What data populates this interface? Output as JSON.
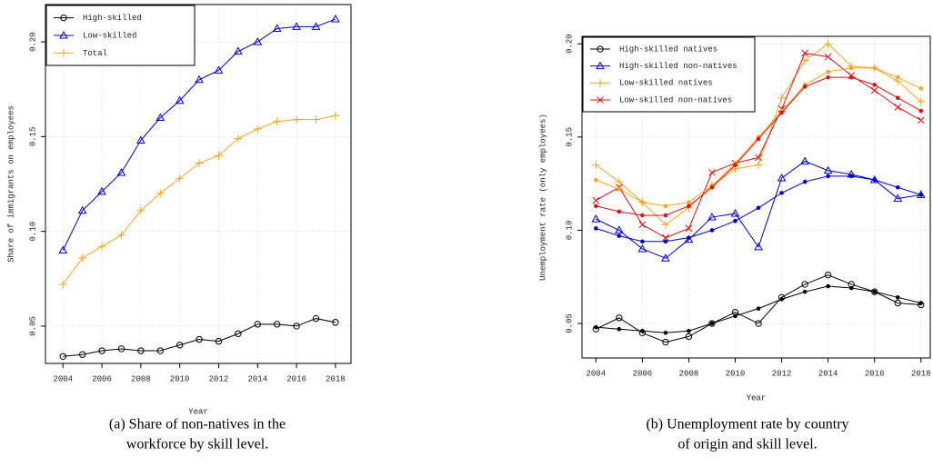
{
  "chart_data": [
    {
      "type": "line",
      "ylabel": "Share of immigrants on employees",
      "xlabel": "Year",
      "caption": [
        "(a) Share of non-natives in the",
        "workforce by skill level."
      ],
      "legend": "top-left",
      "grid": true,
      "x": [
        2004,
        2005,
        2006,
        2007,
        2008,
        2009,
        2010,
        2011,
        2012,
        2013,
        2014,
        2015,
        2016,
        2017,
        2018
      ],
      "xlim": [
        2003.1,
        2018.8
      ],
      "xticks": [
        2004,
        2006,
        2008,
        2010,
        2012,
        2014,
        2016,
        2018
      ],
      "ylim": [
        0.0303,
        0.2197
      ],
      "yticks": [
        0.05,
        {
          "value": 0.1,
          "label": "0.10"
        },
        0.15,
        {
          "value": 0.2,
          "label": "0.20"
        }
      ],
      "series": [
        {
          "name": "High-skilled",
          "color": "#000000",
          "marker": "circle",
          "values": [
            0.034,
            0.035,
            0.037,
            0.038,
            0.037,
            0.037,
            0.04,
            0.043,
            0.042,
            0.046,
            0.051,
            0.051,
            0.05,
            0.054,
            0.052
          ]
        },
        {
          "name": "Low-skilled",
          "color": "#0000cc",
          "marker": "triangle",
          "values": [
            0.09,
            0.111,
            0.121,
            0.131,
            0.148,
            0.16,
            0.169,
            0.18,
            0.185,
            0.195,
            0.2,
            0.207,
            0.208,
            0.208,
            0.212
          ]
        },
        {
          "name": "Total",
          "color": "#f5a623",
          "marker": "plus",
          "values": [
            0.072,
            0.086,
            0.092,
            0.098,
            0.111,
            0.12,
            0.128,
            0.136,
            0.14,
            0.149,
            0.154,
            0.158,
            0.159,
            0.159,
            0.161
          ]
        }
      ]
    },
    {
      "type": "line",
      "ylabel": "Unemployment rate (only employees)",
      "xlabel": "Year",
      "caption": [
        "(b) Unemployment rate by country",
        "of origin and skill level."
      ],
      "legend": "top-left",
      "grid": true,
      "x": [
        2004,
        2005,
        2006,
        2007,
        2008,
        2009,
        2010,
        2011,
        2012,
        2013,
        2014,
        2015,
        2016,
        2017,
        2018
      ],
      "xlim": [
        2003.4,
        2018.4
      ],
      "xticks": [
        2004,
        2006,
        2008,
        2010,
        2012,
        2014,
        2016,
        2018
      ],
      "ylim": [
        0.0315,
        0.204
      ],
      "yticks": [
        0.05,
        {
          "value": 0.1,
          "label": "0.10"
        },
        0.15,
        {
          "value": 0.2,
          "label": "0.20"
        }
      ],
      "series": [
        {
          "name": "High-skilled natives",
          "color": "#000000",
          "marker": "circle",
          "values": [
            0.047,
            0.053,
            0.045,
            0.04,
            0.043,
            0.05,
            0.056,
            0.05,
            0.064,
            0.071,
            0.076,
            0.071,
            0.067,
            0.061,
            0.06
          ]
        },
        {
          "name": "High-skilled non-natives",
          "color": "#0000cc",
          "marker": "triangle",
          "values": [
            0.106,
            0.1,
            0.09,
            0.085,
            0.095,
            0.107,
            0.109,
            0.091,
            0.128,
            0.137,
            0.132,
            0.13,
            0.127,
            0.117,
            0.119
          ]
        },
        {
          "name": "Low-skilled natives",
          "color": "#f5a623",
          "marker": "plus",
          "values": [
            0.135,
            0.126,
            0.115,
            0.103,
            0.112,
            0.124,
            0.133,
            0.135,
            0.171,
            0.191,
            0.2,
            0.188,
            0.187,
            0.18,
            0.169
          ]
        },
        {
          "name": "Low-skilled non-natives",
          "color": "#e01010",
          "marker": "cross",
          "values": [
            0.116,
            0.123,
            0.103,
            0.096,
            0.101,
            0.131,
            0.136,
            0.139,
            0.165,
            0.195,
            0.193,
            0.183,
            0.175,
            0.166,
            0.159
          ]
        },
        {
          "color": "#000000",
          "marker": "dot",
          "values": [
            0.048,
            0.047,
            0.046,
            0.045,
            0.046,
            0.05,
            0.054,
            0.058,
            0.063,
            0.067,
            0.07,
            0.069,
            0.067,
            0.064,
            0.061
          ]
        },
        {
          "color": "#0000cc",
          "marker": "dot",
          "values": [
            0.101,
            0.097,
            0.094,
            0.094,
            0.096,
            0.1,
            0.105,
            0.112,
            0.12,
            0.126,
            0.129,
            0.129,
            0.127,
            0.123,
            0.119
          ]
        },
        {
          "color": "#f5a623",
          "marker": "dot",
          "values": [
            0.127,
            0.122,
            0.115,
            0.113,
            0.115,
            0.124,
            0.136,
            0.15,
            0.164,
            0.178,
            0.185,
            0.187,
            0.187,
            0.182,
            0.176
          ]
        },
        {
          "color": "#e01010",
          "marker": "dot",
          "values": [
            0.113,
            0.11,
            0.108,
            0.108,
            0.113,
            0.123,
            0.135,
            0.149,
            0.163,
            0.177,
            0.182,
            0.182,
            0.178,
            0.171,
            0.164
          ]
        }
      ]
    }
  ]
}
